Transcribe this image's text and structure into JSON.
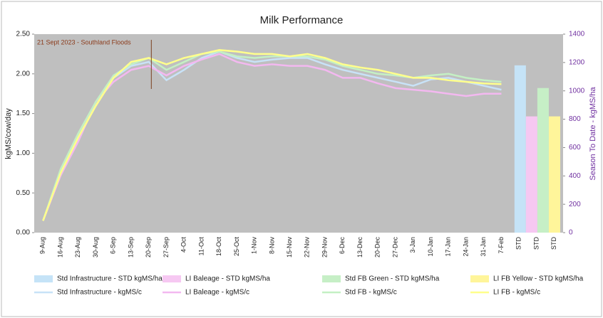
{
  "chart_data": {
    "type": "combo",
    "title": "Milk Performance",
    "y_label": "kgMS/cow/day",
    "y2_label": "Season To Date - kgMS/ha",
    "annotation": {
      "text": "21 Sept 2023 - Southland Floods",
      "at": "20-Sep"
    },
    "categories": [
      "9-Aug",
      "16-Aug",
      "23-Aug",
      "30-Aug",
      "6-Sep",
      "13-Sep",
      "20-Sep",
      "27-Sep",
      "4-Oct",
      "11-Oct",
      "18-Oct",
      "25-Oct",
      "1-Nov",
      "8-Nov",
      "15-Nov",
      "22-Nov",
      "29-Nov",
      "6-Dec",
      "13-Dec",
      "20-Dec",
      "27-Dec",
      "3-Jan",
      "10-Jan",
      "17-Jan",
      "24-Jan",
      "31-Jan",
      "7-Feb",
      "STD",
      "STD",
      "STD"
    ],
    "ylim": [
      0,
      2.5
    ],
    "yticks": [
      {
        "value": 0,
        "label": "0.00"
      },
      {
        "value": 0.5,
        "label": "0.50"
      },
      {
        "value": 1,
        "label": "1.00"
      },
      {
        "value": 1.5,
        "label": "1.50"
      },
      {
        "value": 2,
        "label": "2.00"
      },
      {
        "value": 2.5,
        "label": "2.50"
      }
    ],
    "y2lim": [
      0,
      1400
    ],
    "y2ticks": [
      0,
      200,
      400,
      600,
      800,
      1000,
      1200,
      1400
    ],
    "bars": [
      {
        "name": "Std Infrastructure - STD kgMS/ha",
        "color": "#c5e3f7",
        "axis": "y2",
        "value": 1180
      },
      {
        "name": "LI Baleage - STD kgMS/ha",
        "color": "#f6c8f2",
        "axis": "y2",
        "value": 820
      },
      {
        "name": "Std FB Green - STD kgMS/ha",
        "color": "#c6efc6",
        "axis": "y2",
        "value": 1020
      },
      {
        "name": "LI FB Yellow - STD kgMS/ha",
        "color": "#fff59a",
        "axis": "y2",
        "value": 820
      }
    ],
    "series": [
      {
        "name": "Std Infrastructure - kgMS/c",
        "color": "#c8e2f7",
        "values": [
          0.15,
          0.75,
          1.2,
          1.6,
          1.95,
          2.1,
          2.15,
          1.92,
          2.05,
          2.2,
          2.28,
          2.2,
          2.15,
          2.18,
          2.2,
          2.2,
          2.12,
          2.05,
          2.0,
          1.95,
          1.9,
          1.85,
          1.93,
          1.95,
          1.9,
          1.85,
          1.8,
          null,
          null,
          null
        ]
      },
      {
        "name": "LI Baleage - kgMS/c",
        "color": "#f3b8f0",
        "values": [
          0.15,
          0.72,
          1.15,
          1.65,
          1.9,
          2.05,
          2.1,
          1.98,
          2.1,
          2.18,
          2.25,
          2.15,
          2.1,
          2.12,
          2.1,
          2.1,
          2.05,
          1.95,
          1.95,
          1.88,
          1.82,
          1.8,
          1.78,
          1.75,
          1.72,
          1.75,
          1.75,
          null,
          null,
          null
        ]
      },
      {
        "name": "Std FB  - kgMS/c",
        "color": "#c4f0c4",
        "values": [
          0.15,
          0.8,
          1.25,
          1.65,
          1.98,
          2.12,
          2.2,
          2.05,
          2.15,
          2.25,
          2.28,
          2.22,
          2.2,
          2.22,
          2.22,
          2.22,
          2.18,
          2.1,
          2.05,
          2.0,
          1.98,
          1.95,
          1.98,
          2.0,
          1.95,
          1.92,
          1.9,
          null,
          null,
          null
        ]
      },
      {
        "name": "LI FB - kgMS/c",
        "color": "#ffff8c",
        "values": [
          0.15,
          0.75,
          1.2,
          1.6,
          1.95,
          2.15,
          2.2,
          2.12,
          2.2,
          2.25,
          2.3,
          2.28,
          2.25,
          2.25,
          2.22,
          2.25,
          2.2,
          2.12,
          2.08,
          2.05,
          2.0,
          1.95,
          1.95,
          1.92,
          1.9,
          1.88,
          1.87,
          null,
          null,
          null
        ]
      }
    ],
    "grid": false
  }
}
